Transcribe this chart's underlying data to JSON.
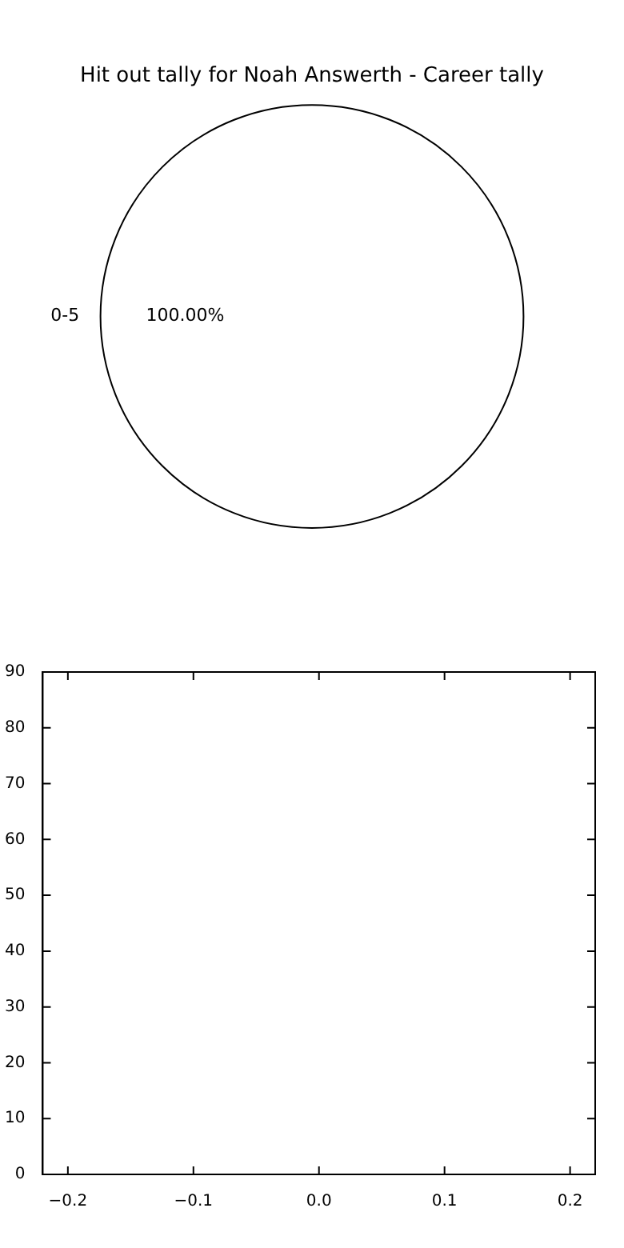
{
  "chart_data": [
    {
      "type": "pie",
      "title": "Hit out tally for Noah Answerth - Career tally",
      "categories": [
        "0-5"
      ],
      "values": [
        100
      ],
      "colors": [
        "#ffffff"
      ],
      "value_labels": [
        "100.00%"
      ]
    },
    {
      "type": "scatter",
      "xlim": [
        -0.22,
        0.22
      ],
      "ylim": [
        0,
        90
      ],
      "xticks": [
        {
          "value": -0.2,
          "label": "−0.2"
        },
        {
          "value": -0.1,
          "label": "−0.1"
        },
        {
          "value": 0,
          "label": "0.0"
        },
        {
          "value": 0.1,
          "label": "0.1"
        },
        {
          "value": 0.2,
          "label": "0.2"
        }
      ],
      "yticks": [
        0,
        10,
        20,
        30,
        40,
        50,
        60,
        70,
        80,
        90
      ]
    }
  ]
}
